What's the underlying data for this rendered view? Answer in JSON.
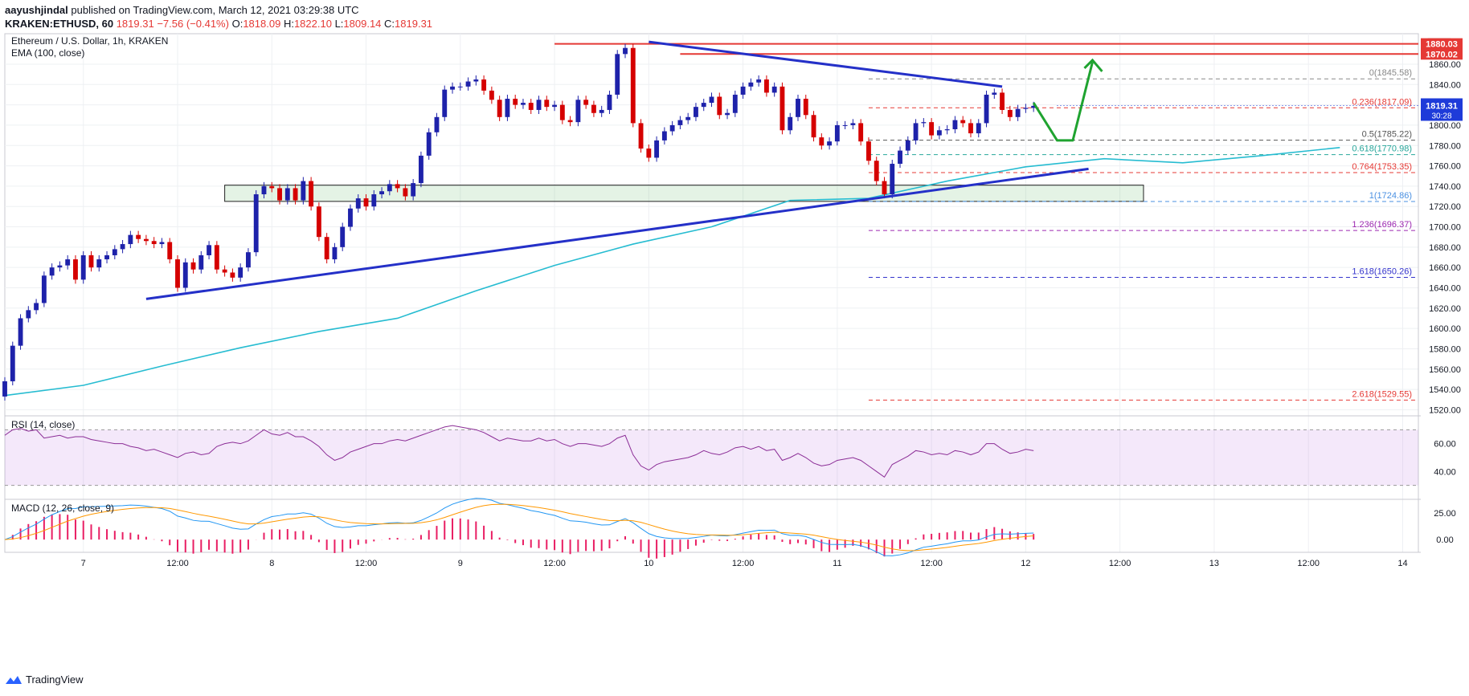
{
  "header": {
    "publisher": "aayushjindal",
    "published_text": "published on TradingView.com, March 12, 2021 03:29:38 UTC",
    "symbol": "KRAKEN:ETHUSD, 60",
    "price": "1819.31",
    "change": "−7.56 (−0.41%)",
    "o_label": "O:",
    "o": "1818.09",
    "h_label": "H:",
    "h": "1822.10",
    "l_label": "L:",
    "l": "1809.14",
    "c_label": "C:",
    "c": "1819.31"
  },
  "legend": {
    "title": "Ethereum / U.S. Dollar, 1h, KRAKEN",
    "ema": "EMA (100, close)",
    "rsi": "RSI (14, close)",
    "macd": "MACD (12, 26, close, 9)",
    "currency": "USD"
  },
  "footer": {
    "brand": "TradingView"
  },
  "colors": {
    "up": "#1e22aa",
    "down": "#d50000",
    "ema": "#26bcd1",
    "trend": "#2430c8",
    "resistance": "#e53935",
    "arrow": "#1fa330",
    "rsi": "#8b2d96",
    "macd": "#2196f3",
    "signal": "#ff9800",
    "hist": "#e91e63"
  },
  "chart_data": {
    "type": "candlestick",
    "title": "Ethereum / U.S. Dollar, 1h, KRAKEN",
    "ylim": [
      1514,
      1890
    ],
    "x_ticks": [
      "7",
      "12:00",
      "8",
      "12:00",
      "9",
      "12:00",
      "10",
      "12:00",
      "11",
      "12:00",
      "12",
      "12:00",
      "13",
      "12:00",
      "14"
    ],
    "y_ticks": [
      "1860.00",
      "1840.00",
      "1820.00",
      "1800.00",
      "1780.00",
      "1760.00",
      "1740.00",
      "1720.00",
      "1700.00",
      "1680.00",
      "1660.00",
      "1640.00",
      "1620.00",
      "1600.00",
      "1580.00",
      "1560.00",
      "1540.00",
      "1520.00"
    ],
    "x_range_hours": [
      -10,
      170
    ],
    "candles_hourly_close": [
      1548,
      1583,
      1610,
      1618,
      1625,
      1652,
      1660,
      1662,
      1668,
      1648,
      1672,
      1660,
      1668,
      1672,
      1678,
      1683,
      1692,
      1688,
      1686,
      1683,
      1685,
      1668,
      1640,
      1665,
      1658,
      1672,
      1682,
      1658,
      1655,
      1650,
      1660,
      1675,
      1732,
      1740,
      1738,
      1726,
      1738,
      1726,
      1745,
      1720,
      1690,
      1668,
      1680,
      1700,
      1718,
      1728,
      1720,
      1732,
      1735,
      1742,
      1738,
      1730,
      1743,
      1770,
      1793,
      1808,
      1835,
      1838,
      1838,
      1843,
      1845,
      1834,
      1825,
      1808,
      1826,
      1820,
      1822,
      1815,
      1825,
      1818,
      1820,
      1805,
      1803,
      1825,
      1820,
      1812,
      1815,
      1830,
      1870,
      1876,
      1802,
      1777,
      1768,
      1785,
      1794,
      1800,
      1805,
      1808,
      1818,
      1822,
      1828,
      1810,
      1812,
      1830,
      1838,
      1842,
      1845,
      1832,
      1838,
      1795,
      1808,
      1826,
      1810,
      1788,
      1780,
      1784,
      1800,
      1800,
      1802,
      1784,
      1765,
      1745,
      1732,
      1762,
      1775,
      1785,
      1802,
      1803,
      1790,
      1795,
      1796,
      1805,
      1802,
      1792,
      1802,
      1830,
      1832,
      1815,
      1808,
      1816,
      1817,
      1819
    ],
    "ema100": [
      [
        -10,
        1534
      ],
      [
        0,
        1544
      ],
      [
        10,
        1563
      ],
      [
        20,
        1581
      ],
      [
        30,
        1597
      ],
      [
        40,
        1610
      ],
      [
        50,
        1637
      ],
      [
        60,
        1662
      ],
      [
        70,
        1683
      ],
      [
        80,
        1700
      ],
      [
        90,
        1726
      ],
      [
        100,
        1728
      ],
      [
        110,
        1745
      ],
      [
        120,
        1759
      ],
      [
        130,
        1767
      ],
      [
        140,
        1763
      ],
      [
        150,
        1770
      ],
      [
        160,
        1778
      ]
    ],
    "support_zone": [
      1725,
      1741
    ],
    "horizontal_resistance": [
      {
        "label": "1880.03",
        "value": 1880.03
      },
      {
        "label": "1870.02",
        "value": 1870.02
      }
    ],
    "current_price": {
      "label": "1819.31",
      "countdown": "30:28",
      "value": 1819.31
    },
    "fib_levels": [
      {
        "label": "0(1845.58)",
        "value": 1845.58,
        "color": "#888888"
      },
      {
        "label": "0.236(1817.09)",
        "value": 1817.09,
        "color": "#e53935"
      },
      {
        "label": "0.5(1785.22)",
        "value": 1785.22,
        "color": "#555555"
      },
      {
        "label": "0.618(1770.98)",
        "value": 1770.98,
        "color": "#26a69a"
      },
      {
        "label": "0.764(1753.35)",
        "value": 1753.35,
        "color": "#e53935"
      },
      {
        "label": "1(1724.86)",
        "value": 1724.86,
        "color": "#4a90e2"
      },
      {
        "label": "1.236(1696.37)",
        "value": 1696.37,
        "color": "#9c27b0"
      },
      {
        "label": "1.618(1650.26)",
        "value": 1650.26,
        "color": "#3333cc"
      },
      {
        "label": "2.618(1529.55)",
        "value": 1529.55,
        "color": "#e53935"
      }
    ],
    "trendlines": [
      {
        "name": "descending-resistance",
        "points": [
          [
            72,
            1882
          ],
          [
            117,
            1838
          ]
        ]
      },
      {
        "name": "ascending-support",
        "points": [
          [
            8,
            1629
          ],
          [
            128,
            1757
          ]
        ]
      }
    ],
    "rsi": {
      "ylim": [
        20,
        80
      ],
      "ticks": [
        "60.00",
        "40.00"
      ],
      "band": [
        30,
        70
      ],
      "values": [
        66,
        70,
        71,
        69,
        70,
        64,
        65,
        66,
        64,
        65,
        65,
        63,
        62,
        61,
        60,
        60,
        58,
        57,
        55,
        56,
        54,
        52,
        50,
        53,
        54,
        52,
        53,
        58,
        60,
        61,
        60,
        62,
        66,
        70,
        67,
        66,
        68,
        65,
        65,
        62,
        58,
        52,
        48,
        50,
        54,
        56,
        58,
        60,
        60,
        62,
        63,
        62,
        64,
        66,
        68,
        70,
        72,
        73,
        72,
        71,
        70,
        68,
        65,
        62,
        64,
        63,
        62,
        62,
        64,
        62,
        63,
        60,
        58,
        60,
        60,
        59,
        58,
        60,
        64,
        66,
        52,
        44,
        41,
        45,
        47,
        48,
        49,
        50,
        52,
        55,
        53,
        52,
        54,
        57,
        58,
        56,
        58,
        55,
        56,
        48,
        50,
        53,
        50,
        46,
        44,
        45,
        48,
        49,
        50,
        48,
        44,
        40,
        36,
        45,
        48,
        51,
        55,
        54,
        52,
        53,
        52,
        55,
        54,
        52,
        54,
        60,
        60,
        56,
        53,
        54,
        56,
        55
      ]
    },
    "macd": {
      "ylim": [
        -12,
        38
      ],
      "ticks": [
        "25.00",
        "0.00"
      ]
    }
  }
}
